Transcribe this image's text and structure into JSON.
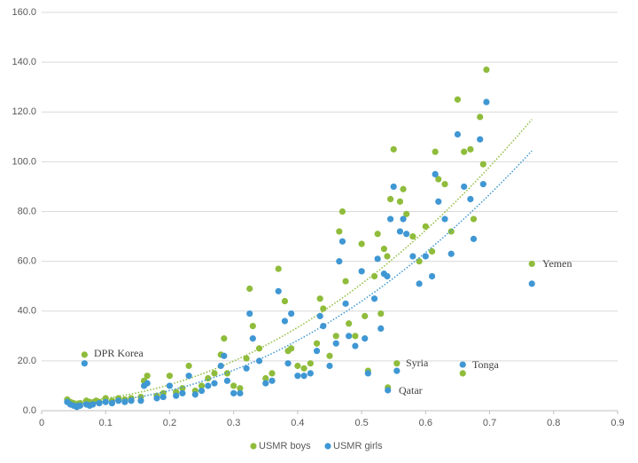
{
  "chart_data": {
    "type": "scatter",
    "xlim": [
      0,
      0.9
    ],
    "xticks": [
      0,
      0.1,
      0.2,
      0.3,
      0.4,
      0.5,
      0.6,
      0.7,
      0.8,
      0.9
    ],
    "ylim": [
      0,
      160
    ],
    "yticks": [
      {
        "value": 0,
        "label": "0.0"
      },
      {
        "value": 20,
        "label": "20.0"
      },
      {
        "value": 40,
        "label": "40.0"
      },
      {
        "value": 60,
        "label": "60.0"
      },
      {
        "value": 80,
        "label": "80.0"
      },
      {
        "value": 100,
        "label": "100.0"
      },
      {
        "value": 120,
        "label": "120.0"
      },
      {
        "value": 140,
        "label": "140.0"
      },
      {
        "value": 160,
        "label": "160.0"
      }
    ],
    "grid": true,
    "legend": "bottom",
    "trendline": "polynomial",
    "annotations": [
      "DPR Korea",
      "Syria",
      "Tonga",
      "Qatar",
      "Yemen"
    ],
    "series": [
      {
        "name": "USMR boys",
        "color": "#8fbc3b",
        "x": [
          0.04,
          0.045,
          0.05,
          0.055,
          0.06,
          0.067,
          0.07,
          0.075,
          0.08,
          0.085,
          0.09,
          0.1,
          0.11,
          0.12,
          0.13,
          0.14,
          0.155,
          0.16,
          0.165,
          0.18,
          0.19,
          0.2,
          0.21,
          0.22,
          0.23,
          0.24,
          0.25,
          0.26,
          0.27,
          0.28,
          0.285,
          0.29,
          0.3,
          0.31,
          0.32,
          0.325,
          0.33,
          0.34,
          0.35,
          0.36,
          0.37,
          0.38,
          0.385,
          0.39,
          0.4,
          0.41,
          0.42,
          0.43,
          0.435,
          0.44,
          0.45,
          0.46,
          0.465,
          0.47,
          0.475,
          0.48,
          0.49,
          0.5,
          0.505,
          0.51,
          0.52,
          0.525,
          0.53,
          0.535,
          0.54,
          0.545,
          0.55,
          0.555,
          0.56,
          0.565,
          0.57,
          0.58,
          0.59,
          0.6,
          0.61,
          0.615,
          0.62,
          0.63,
          0.64,
          0.65,
          0.66,
          0.658,
          0.67,
          0.675,
          0.685,
          0.69,
          0.695,
          0.766,
          0.541
        ],
        "values": [
          4.5,
          3.5,
          3,
          2.5,
          3,
          22.5,
          4,
          3.5,
          3,
          4,
          3.5,
          5,
          4,
          5,
          4.5,
          5,
          5.5,
          12,
          14,
          6,
          7,
          14,
          7.5,
          9,
          18,
          8,
          10,
          13,
          15,
          22.5,
          29,
          15,
          10,
          9,
          21,
          49,
          34,
          25,
          13,
          15,
          57,
          44,
          24,
          25,
          18,
          17,
          19,
          27,
          45,
          41,
          22,
          30,
          72,
          80,
          52,
          35,
          30,
          67,
          38,
          16,
          54,
          71,
          39,
          65,
          62,
          85,
          105,
          19,
          84,
          89,
          79,
          70,
          60,
          74,
          64,
          104,
          93,
          91,
          72,
          125,
          104,
          15,
          105,
          77,
          118,
          99,
          137,
          59,
          9.3
        ]
      },
      {
        "name": "USMR girls",
        "color": "#3f97d3",
        "x": [
          0.04,
          0.045,
          0.05,
          0.055,
          0.06,
          0.067,
          0.07,
          0.075,
          0.08,
          0.09,
          0.1,
          0.11,
          0.12,
          0.13,
          0.14,
          0.155,
          0.16,
          0.165,
          0.18,
          0.19,
          0.2,
          0.21,
          0.22,
          0.23,
          0.24,
          0.25,
          0.26,
          0.27,
          0.28,
          0.285,
          0.29,
          0.3,
          0.31,
          0.32,
          0.325,
          0.33,
          0.34,
          0.35,
          0.36,
          0.37,
          0.38,
          0.385,
          0.39,
          0.4,
          0.41,
          0.42,
          0.43,
          0.435,
          0.44,
          0.45,
          0.46,
          0.465,
          0.47,
          0.475,
          0.48,
          0.49,
          0.5,
          0.505,
          0.51,
          0.52,
          0.525,
          0.53,
          0.535,
          0.54,
          0.545,
          0.55,
          0.555,
          0.56,
          0.565,
          0.57,
          0.58,
          0.59,
          0.6,
          0.61,
          0.615,
          0.62,
          0.63,
          0.64,
          0.65,
          0.66,
          0.658,
          0.67,
          0.675,
          0.685,
          0.69,
          0.695,
          0.766,
          0.541
        ],
        "values": [
          3.5,
          2.5,
          2,
          1.5,
          2,
          19,
          2.5,
          2,
          2.5,
          3,
          3.5,
          3,
          4,
          3.5,
          4,
          4,
          10,
          11,
          5,
          5.5,
          10,
          6,
          7,
          14,
          6.5,
          8,
          10,
          11,
          18,
          22,
          12,
          7,
          7,
          17,
          39,
          29,
          20,
          11,
          12,
          48,
          36,
          19,
          39,
          14,
          14,
          15,
          24,
          38,
          34,
          18,
          27,
          60,
          68,
          43,
          30,
          26,
          56,
          29,
          15,
          45,
          61,
          33,
          55,
          54,
          77,
          90,
          16,
          72,
          77,
          71,
          62,
          51,
          62,
          54,
          95,
          84,
          77,
          63,
          111,
          90,
          18.5,
          85,
          69,
          109,
          91,
          124,
          51,
          8.2
        ]
      }
    ]
  }
}
